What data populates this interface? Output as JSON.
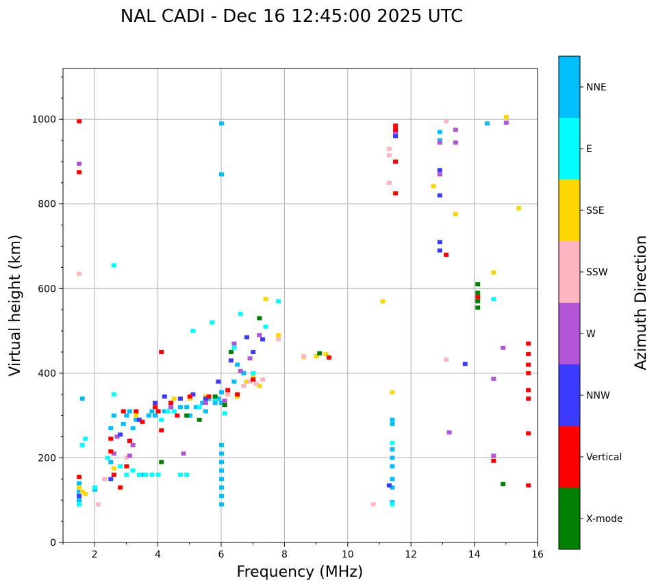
{
  "chart_data": {
    "type": "scatter",
    "title": "NAL CADI - Dec 16 12:45:00 2025 UTC",
    "xlabel": "Frequency (MHz)",
    "ylabel": "Virtual height (km)",
    "xlim": [
      1,
      16
    ],
    "ylim": [
      0,
      1120
    ],
    "xticks": [
      2,
      4,
      6,
      8,
      10,
      12,
      14,
      16
    ],
    "yticks": [
      0,
      200,
      400,
      600,
      800,
      1000
    ],
    "grid": true,
    "colorbar": {
      "label": "Azimuth Direction",
      "categories": [
        {
          "name": "X-mode",
          "color": "#008000"
        },
        {
          "name": "Vertical",
          "color": "#ff0000"
        },
        {
          "name": "NNW",
          "color": "#3b3bff"
        },
        {
          "name": "W",
          "color": "#b455d8"
        },
        {
          "name": "SSW",
          "color": "#ffb6c1"
        },
        {
          "name": "SSE",
          "color": "#ffd700"
        },
        {
          "name": "E",
          "color": "#00ffff"
        },
        {
          "name": "NNE",
          "color": "#00bfff"
        }
      ]
    },
    "series": [
      {
        "name": "NNE",
        "points": [
          [
            1.5,
            100
          ],
          [
            1.5,
            120
          ],
          [
            1.5,
            140
          ],
          [
            1.6,
            340
          ],
          [
            2.0,
            125
          ],
          [
            2.5,
            190
          ],
          [
            2.5,
            270
          ],
          [
            2.6,
            300
          ],
          [
            2.9,
            280
          ],
          [
            3.0,
            300
          ],
          [
            3.1,
            310
          ],
          [
            3.2,
            270
          ],
          [
            3.3,
            290
          ],
          [
            3.5,
            160
          ],
          [
            3.7,
            300
          ],
          [
            3.8,
            310
          ],
          [
            3.9,
            300
          ],
          [
            4.0,
            310
          ],
          [
            4.2,
            310
          ],
          [
            4.5,
            310
          ],
          [
            4.7,
            320
          ],
          [
            4.9,
            320
          ],
          [
            5.0,
            300
          ],
          [
            5.2,
            320
          ],
          [
            5.4,
            330
          ],
          [
            5.5,
            310
          ],
          [
            5.6,
            340
          ],
          [
            5.8,
            330
          ],
          [
            5.9,
            340
          ],
          [
            6.0,
            330
          ],
          [
            6.0,
            355
          ],
          [
            6.0,
            90
          ],
          [
            6.0,
            110
          ],
          [
            6.0,
            130
          ],
          [
            6.0,
            150
          ],
          [
            6.0,
            170
          ],
          [
            6.0,
            190
          ],
          [
            6.0,
            210
          ],
          [
            6.0,
            230
          ],
          [
            6.0,
            870
          ],
          [
            6.0,
            990
          ],
          [
            6.2,
            360
          ],
          [
            6.4,
            380
          ],
          [
            6.5,
            420
          ],
          [
            6.7,
            400
          ],
          [
            11.4,
            95
          ],
          [
            11.4,
            130
          ],
          [
            11.4,
            150
          ],
          [
            11.4,
            180
          ],
          [
            11.4,
            200
          ],
          [
            11.4,
            220
          ],
          [
            11.4,
            280
          ],
          [
            11.4,
            290
          ],
          [
            12.9,
            970
          ],
          [
            12.9,
            950
          ],
          [
            14.4,
            990
          ]
        ]
      },
      {
        "name": "E",
        "points": [
          [
            1.5,
            90
          ],
          [
            1.6,
            230
          ],
          [
            1.7,
            245
          ],
          [
            2.0,
            130
          ],
          [
            2.4,
            200
          ],
          [
            2.6,
            350
          ],
          [
            2.6,
            655
          ],
          [
            2.8,
            180
          ],
          [
            3.0,
            160
          ],
          [
            3.2,
            170
          ],
          [
            3.4,
            160
          ],
          [
            3.6,
            160
          ],
          [
            3.8,
            160
          ],
          [
            4.0,
            160
          ],
          [
            4.1,
            290
          ],
          [
            4.3,
            310
          ],
          [
            4.5,
            310
          ],
          [
            4.7,
            160
          ],
          [
            4.9,
            160
          ],
          [
            5.1,
            500
          ],
          [
            5.3,
            320
          ],
          [
            5.7,
            520
          ],
          [
            5.8,
            340
          ],
          [
            6.1,
            305
          ],
          [
            6.4,
            460
          ],
          [
            6.6,
            540
          ],
          [
            7.0,
            400
          ],
          [
            7.4,
            510
          ],
          [
            7.8,
            570
          ],
          [
            11.4,
            90
          ],
          [
            11.4,
            235
          ],
          [
            14.6,
            575
          ]
        ]
      },
      {
        "name": "SSE",
        "points": [
          [
            1.5,
            130
          ],
          [
            1.6,
            120
          ],
          [
            1.7,
            115
          ],
          [
            2.6,
            175
          ],
          [
            3.3,
            300
          ],
          [
            4.5,
            340
          ],
          [
            5.0,
            340
          ],
          [
            5.5,
            345
          ],
          [
            6.2,
            350
          ],
          [
            6.5,
            345
          ],
          [
            6.8,
            380
          ],
          [
            7.0,
            390
          ],
          [
            7.2,
            370
          ],
          [
            7.4,
            575
          ],
          [
            7.8,
            490
          ],
          [
            8.6,
            438
          ],
          [
            9.0,
            440
          ],
          [
            9.3,
            445
          ],
          [
            11.1,
            570
          ],
          [
            11.4,
            355
          ],
          [
            12.7,
            842
          ],
          [
            13.4,
            776
          ],
          [
            14.6,
            638
          ],
          [
            15.0,
            1005
          ],
          [
            15.4,
            790
          ]
        ]
      },
      {
        "name": "SSW",
        "points": [
          [
            1.5,
            635
          ],
          [
            2.1,
            90
          ],
          [
            2.3,
            150
          ],
          [
            3.0,
            200
          ],
          [
            6.2,
            350
          ],
          [
            6.7,
            370
          ],
          [
            6.9,
            380
          ],
          [
            7.1,
            375
          ],
          [
            7.3,
            385
          ],
          [
            7.8,
            480
          ],
          [
            8.6,
            440
          ],
          [
            10.8,
            90
          ],
          [
            11.3,
            930
          ],
          [
            11.3,
            915
          ],
          [
            11.3,
            850
          ],
          [
            13.1,
            995
          ],
          [
            13.1,
            432
          ]
        ]
      },
      {
        "name": "W",
        "points": [
          [
            1.5,
            895
          ],
          [
            2.6,
            210
          ],
          [
            2.7,
            250
          ],
          [
            3.1,
            205
          ],
          [
            3.2,
            230
          ],
          [
            3.4,
            290
          ],
          [
            4.4,
            320
          ],
          [
            4.8,
            210
          ],
          [
            5.5,
            330
          ],
          [
            6.1,
            335
          ],
          [
            6.4,
            470
          ],
          [
            6.6,
            405
          ],
          [
            6.9,
            435
          ],
          [
            7.2,
            490
          ],
          [
            11.5,
            970
          ],
          [
            12.9,
            945
          ],
          [
            12.9,
            870
          ],
          [
            13.4,
            975
          ],
          [
            13.4,
            945
          ],
          [
            13.2,
            260
          ],
          [
            14.6,
            387
          ],
          [
            14.6,
            205
          ],
          [
            14.9,
            460
          ],
          [
            15.0,
            992
          ]
        ]
      },
      {
        "name": "NNW",
        "points": [
          [
            1.5,
            110
          ],
          [
            2.5,
            150
          ],
          [
            2.8,
            255
          ],
          [
            3.1,
            240
          ],
          [
            3.4,
            290
          ],
          [
            3.9,
            330
          ],
          [
            4.2,
            345
          ],
          [
            4.7,
            340
          ],
          [
            5.1,
            350
          ],
          [
            5.5,
            340
          ],
          [
            5.9,
            380
          ],
          [
            6.3,
            430
          ],
          [
            6.8,
            485
          ],
          [
            7.0,
            450
          ],
          [
            7.3,
            480
          ],
          [
            11.3,
            135
          ],
          [
            11.5,
            960
          ],
          [
            12.9,
            880
          ],
          [
            12.9,
            820
          ],
          [
            12.9,
            710
          ],
          [
            12.9,
            690
          ],
          [
            13.7,
            422
          ]
        ]
      },
      {
        "name": "Vertical",
        "points": [
          [
            1.5,
            995
          ],
          [
            1.5,
            875
          ],
          [
            1.5,
            155
          ],
          [
            2.5,
            215
          ],
          [
            2.5,
            245
          ],
          [
            2.6,
            160
          ],
          [
            2.8,
            130
          ],
          [
            2.9,
            310
          ],
          [
            3.0,
            180
          ],
          [
            3.1,
            240
          ],
          [
            3.3,
            310
          ],
          [
            3.5,
            285
          ],
          [
            3.9,
            320
          ],
          [
            4.0,
            310
          ],
          [
            4.1,
            450
          ],
          [
            4.1,
            265
          ],
          [
            4.4,
            330
          ],
          [
            4.6,
            300
          ],
          [
            5.0,
            345
          ],
          [
            5.6,
            345
          ],
          [
            6.2,
            360
          ],
          [
            6.5,
            350
          ],
          [
            7.0,
            385
          ],
          [
            9.4,
            437
          ],
          [
            11.5,
            985
          ],
          [
            11.5,
            975
          ],
          [
            11.5,
            900
          ],
          [
            11.5,
            825
          ],
          [
            13.1,
            680
          ],
          [
            14.1,
            580
          ],
          [
            14.6,
            193
          ],
          [
            15.7,
            470
          ],
          [
            15.7,
            445
          ],
          [
            15.7,
            420
          ],
          [
            15.7,
            400
          ],
          [
            15.7,
            360
          ],
          [
            15.7,
            340
          ],
          [
            15.7,
            258
          ],
          [
            15.7,
            135
          ]
        ]
      },
      {
        "name": "X-mode",
        "points": [
          [
            4.1,
            190
          ],
          [
            4.9,
            300
          ],
          [
            5.3,
            290
          ],
          [
            5.8,
            345
          ],
          [
            6.1,
            325
          ],
          [
            6.3,
            450
          ],
          [
            7.2,
            530
          ],
          [
            9.1,
            447
          ],
          [
            14.1,
            610
          ],
          [
            14.1,
            590
          ],
          [
            14.1,
            570
          ],
          [
            14.1,
            555
          ],
          [
            14.9,
            138
          ]
        ]
      }
    ]
  }
}
